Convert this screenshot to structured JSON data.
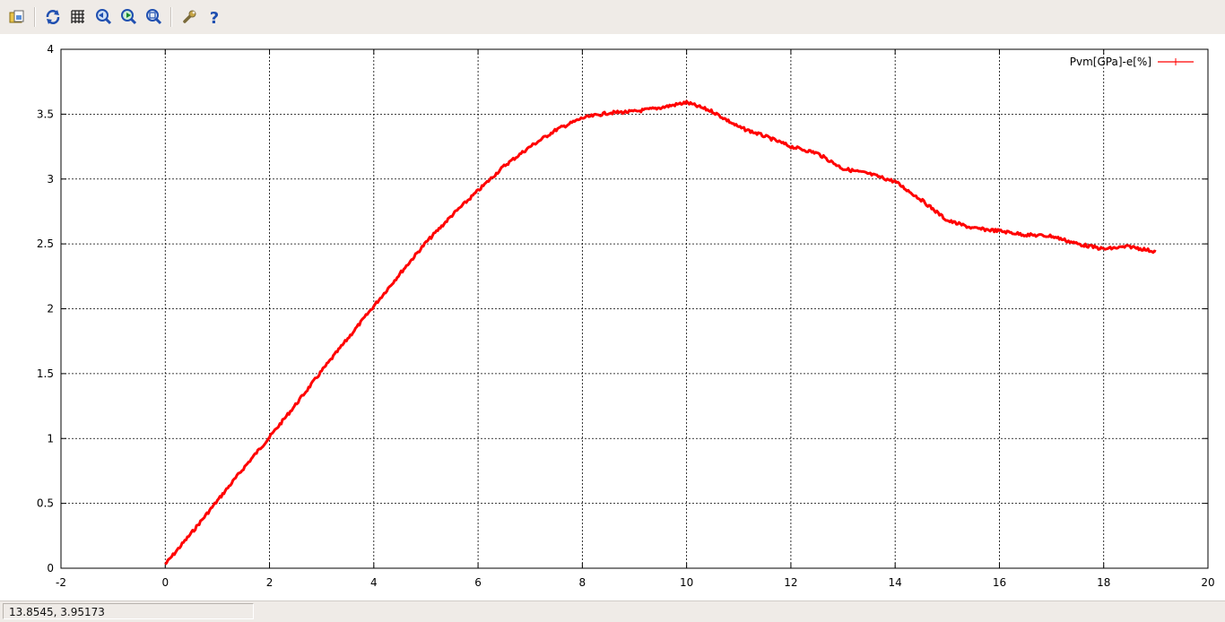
{
  "toolbar": {
    "items": [
      {
        "name": "export-icon",
        "label": "Export"
      },
      {
        "name": "replot-icon",
        "label": "Replot"
      },
      {
        "name": "grid-icon",
        "label": "Grid"
      },
      {
        "name": "zoom-prev-icon",
        "label": "Previous zoom"
      },
      {
        "name": "zoom-next-icon",
        "label": "Next zoom"
      },
      {
        "name": "unzoom-icon",
        "label": "Unzoom"
      },
      {
        "name": "settings-wrench-icon",
        "label": "Settings"
      },
      {
        "name": "help-icon",
        "label": "Help"
      }
    ]
  },
  "status": {
    "coordinates": "13.8545,  3.95173"
  },
  "chart_data": {
    "type": "line",
    "title": "",
    "xlabel": "",
    "ylabel": "",
    "xlim": [
      -2,
      20
    ],
    "ylim": [
      0,
      4
    ],
    "grid": true,
    "legend_position": "top-right",
    "x_ticks": [
      "-2",
      "0",
      "2",
      "4",
      "6",
      "8",
      "10",
      "12",
      "14",
      "16",
      "18",
      "20"
    ],
    "y_ticks": [
      "0",
      "0.5",
      "1",
      "1.5",
      "2",
      "2.5",
      "3",
      "3.5",
      "4"
    ],
    "series": [
      {
        "name": "Pvm[GPa]-e[%]",
        "color": "#ff0000",
        "x": [
          0,
          0.5,
          1,
          1.5,
          2,
          2.5,
          3,
          3.5,
          4,
          4.5,
          5,
          5.5,
          6,
          6.5,
          7,
          7.5,
          8,
          8.5,
          9,
          9.5,
          10,
          10.5,
          11,
          11.5,
          12,
          12.5,
          13,
          13.5,
          14,
          14.5,
          15,
          15.5,
          16,
          16.5,
          17,
          17.5,
          18,
          18.5,
          19
        ],
        "y": [
          0.03,
          0.27,
          0.52,
          0.77,
          1.01,
          1.26,
          1.52,
          1.77,
          2.02,
          2.27,
          2.51,
          2.72,
          2.91,
          3.1,
          3.25,
          3.38,
          3.47,
          3.51,
          3.52,
          3.55,
          3.59,
          3.52,
          3.4,
          3.33,
          3.25,
          3.2,
          3.08,
          3.04,
          2.98,
          2.84,
          2.68,
          2.62,
          2.6,
          2.57,
          2.56,
          2.5,
          2.46,
          2.48,
          2.44
        ]
      }
    ]
  }
}
